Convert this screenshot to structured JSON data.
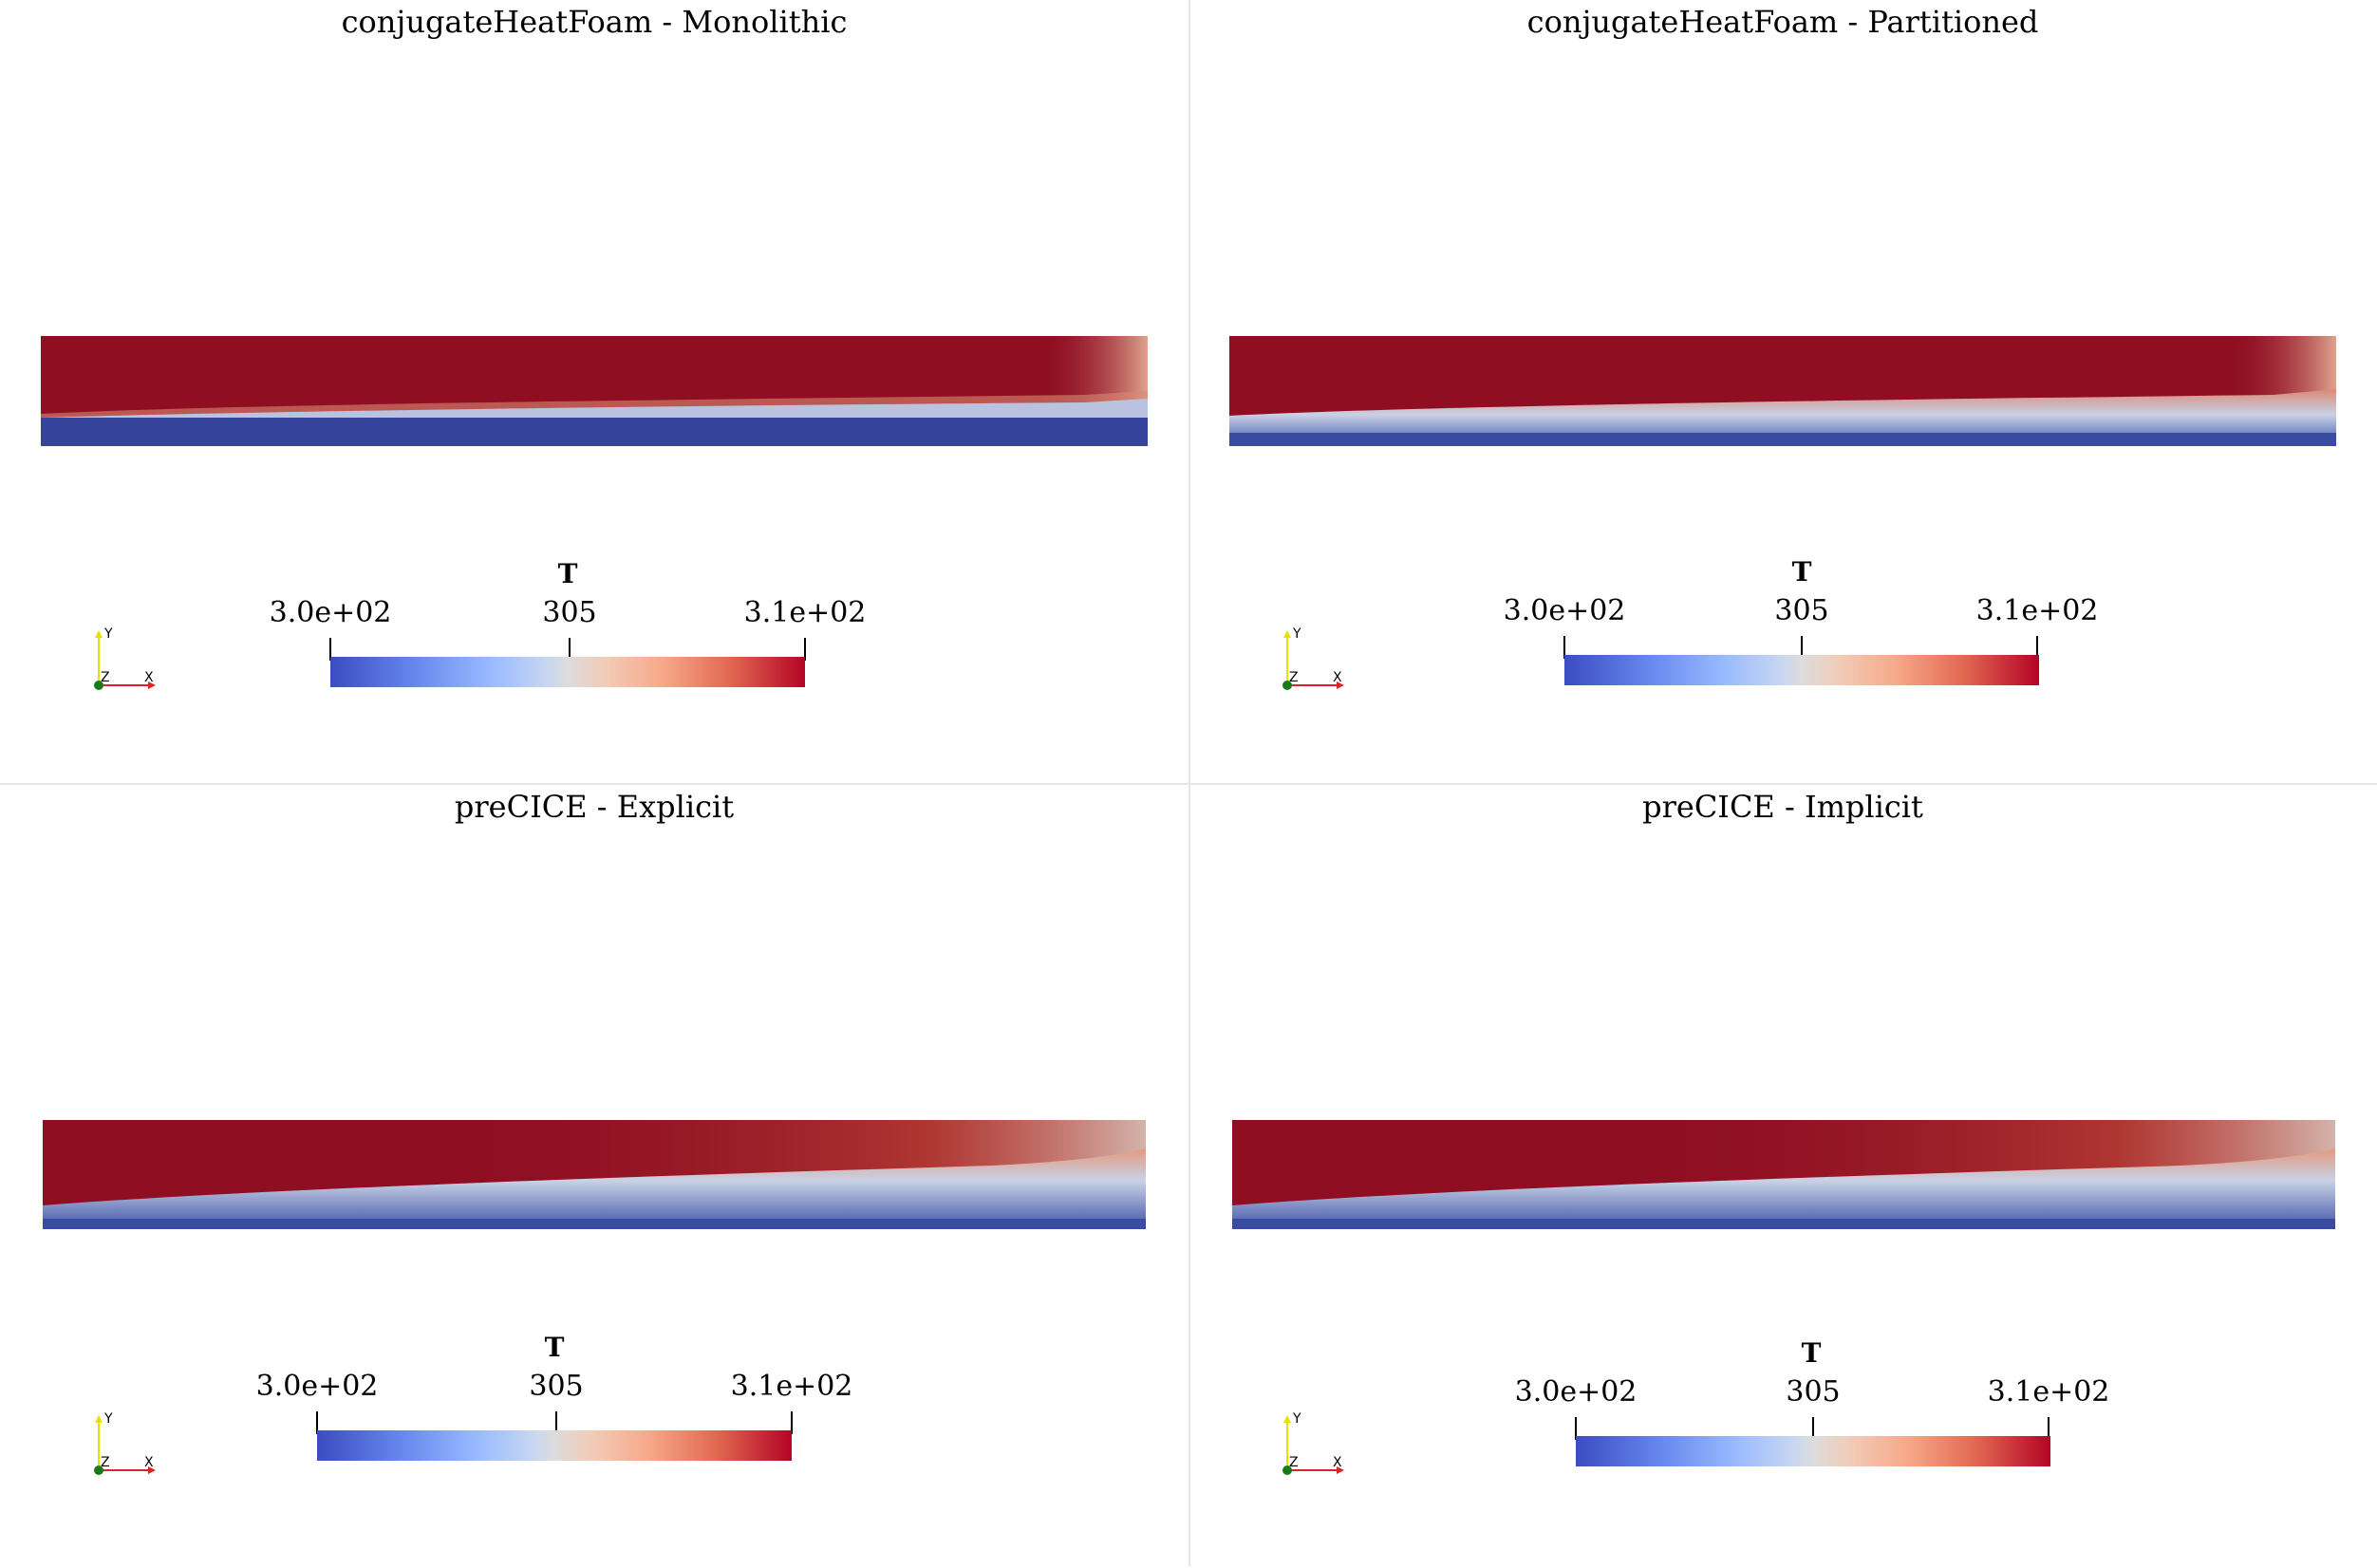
{
  "panels": [
    {
      "title": "conjugateHeatFoam - Monolithic",
      "legend": {
        "title": "T",
        "min_label": "3.0e+02",
        "mid_label": "305",
        "max_label": "3.1e+02"
      },
      "axes": {
        "y": "Y",
        "z": "Z",
        "x": "X"
      }
    },
    {
      "title": "conjugateHeatFoam - Partitioned",
      "legend": {
        "title": "T",
        "min_label": "3.0e+02",
        "mid_label": "305",
        "max_label": "3.1e+02"
      },
      "axes": {
        "y": "Y",
        "z": "Z",
        "x": "X"
      }
    },
    {
      "title": "preCICE - Explicit",
      "legend": {
        "title": "T",
        "min_label": "3.0e+02",
        "mid_label": "305",
        "max_label": "3.1e+02"
      },
      "axes": {
        "y": "Y",
        "z": "Z",
        "x": "X"
      }
    },
    {
      "title": "preCICE - Implicit",
      "legend": {
        "title": "T",
        "min_label": "3.0e+02",
        "mid_label": "305",
        "max_label": "3.1e+02"
      },
      "axes": {
        "y": "Y",
        "z": "Z",
        "x": "X"
      }
    }
  ],
  "colormap": {
    "low": "#3b4cc0",
    "mid": "#dddcdc",
    "high": "#b40426",
    "dark_high": "#8f0e22",
    "dark_low": "#35449a"
  }
}
